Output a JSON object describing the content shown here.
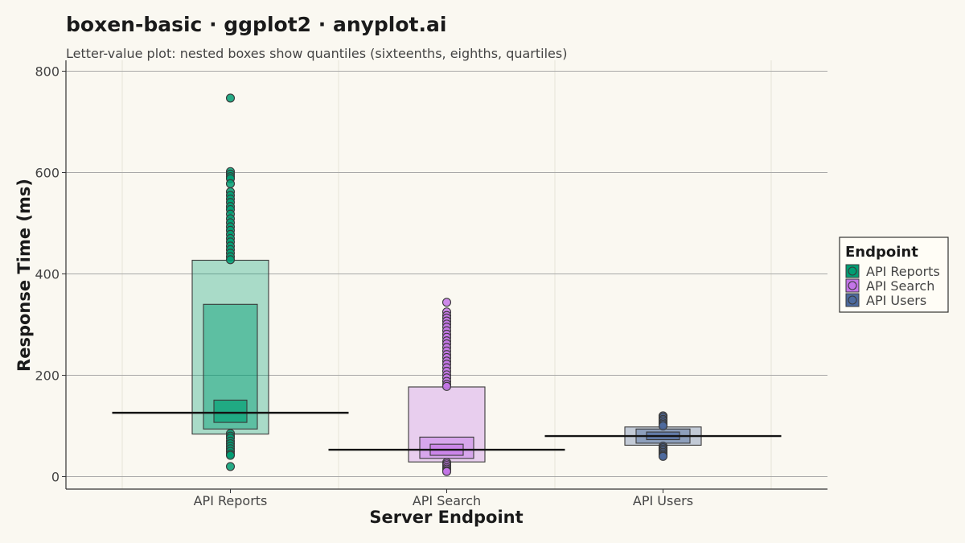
{
  "chart_data": {
    "type": "boxen",
    "title": "boxen-basic · ggplot2 · anyplot.ai",
    "subtitle": "Letter-value plot: nested boxes show quantiles (sixteenths, eighths, quartiles)",
    "xlabel": "Server Endpoint",
    "ylabel": "Response Time (ms)",
    "ylim": [
      -25,
      820
    ],
    "yticks": [
      0,
      200,
      400,
      600,
      800
    ],
    "grid": {
      "major_y": true,
      "minor_x": true
    },
    "legend": {
      "title": "Endpoint",
      "position": "right"
    },
    "categories": [
      "API Reports",
      "API Search",
      "API Users"
    ],
    "series": [
      {
        "name": "API Reports",
        "color": "#009E73",
        "median": 126,
        "boxes": [
          {
            "level": "sixteenths",
            "low": 84,
            "high": 427
          },
          {
            "level": "eighths",
            "low": 94,
            "high": 340
          },
          {
            "level": "quartiles",
            "low": 107,
            "high": 151
          }
        ],
        "outliers": [
          747,
          602,
          597,
          592,
          588,
          578,
          562,
          555,
          548,
          541,
          533,
          527,
          518,
          509,
          501,
          493,
          486,
          478,
          470,
          463,
          455,
          448,
          441,
          434,
          428,
          85,
          80,
          76,
          70,
          65,
          60,
          55,
          50,
          45,
          42,
          20
        ]
      },
      {
        "name": "API Search",
        "color": "#C475E8",
        "median": 53,
        "boxes": [
          {
            "level": "sixteenths",
            "low": 29,
            "high": 177
          },
          {
            "level": "eighths",
            "low": 36,
            "high": 78
          },
          {
            "level": "quartiles",
            "low": 42,
            "high": 64
          }
        ],
        "outliers": [
          344,
          325,
          318,
          313,
          307,
          301,
          295,
          288,
          281,
          275,
          268,
          262,
          255,
          248,
          241,
          235,
          228,
          222,
          215,
          208,
          201,
          195,
          188,
          182,
          178,
          28,
          25,
          22,
          18,
          15,
          12,
          10
        ]
      },
      {
        "name": "API Users",
        "color": "#4D6A9E",
        "median": 80,
        "boxes": [
          {
            "level": "sixteenths",
            "low": 62,
            "high": 98
          },
          {
            "level": "eighths",
            "low": 66,
            "high": 94
          },
          {
            "level": "quartiles",
            "low": 73,
            "high": 88
          }
        ],
        "outliers": [
          120,
          117,
          113,
          110,
          106,
          103,
          100,
          60,
          57,
          54,
          51,
          48,
          45,
          42,
          40
        ]
      }
    ]
  }
}
